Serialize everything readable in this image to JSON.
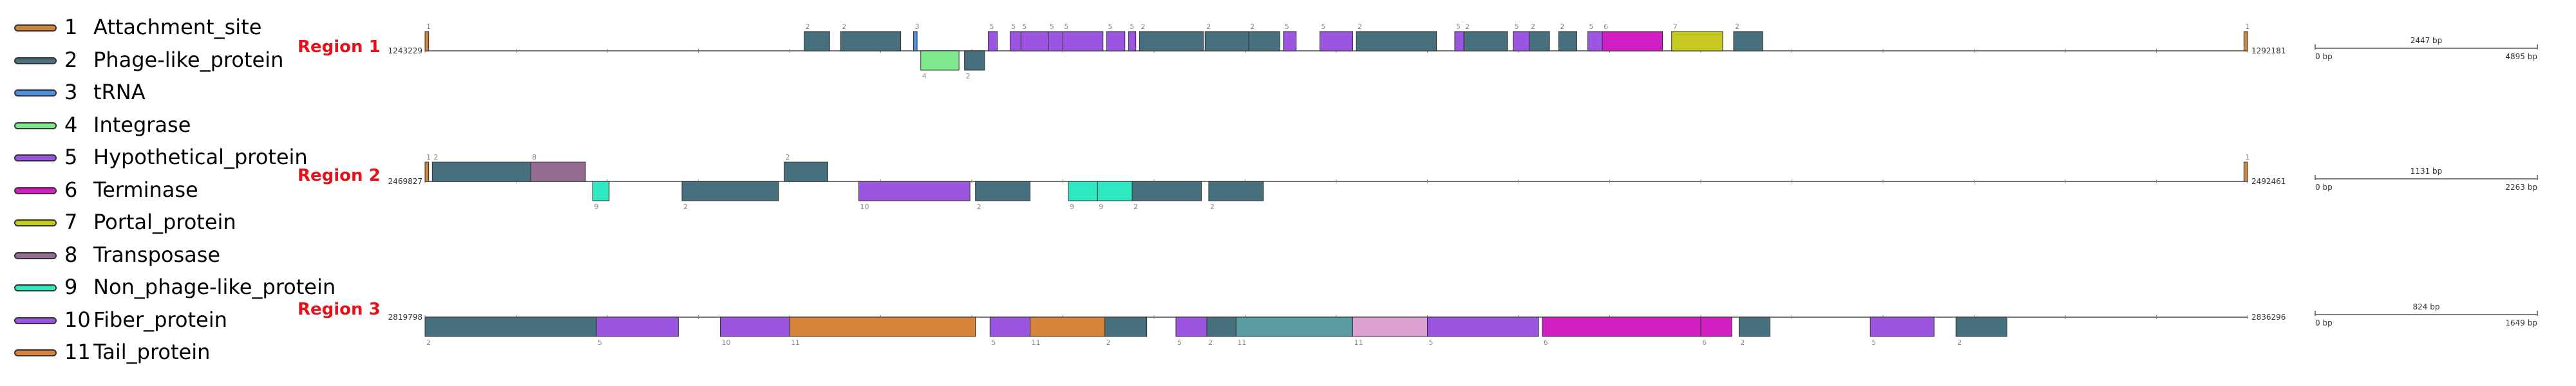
{
  "legend": [
    {
      "num": "1",
      "label": "Attachment_site",
      "color": "#cd853f"
    },
    {
      "num": "2",
      "label": "Phage-like_protein",
      "color": "#47707e"
    },
    {
      "num": "3",
      "label": "tRNA",
      "color": "#4f8fe0"
    },
    {
      "num": "4",
      "label": "Integrase",
      "color": "#7fe88d"
    },
    {
      "num": "5",
      "label": "Hypothetical_protein",
      "color": "#9b55e0"
    },
    {
      "num": "6",
      "label": "Terminase",
      "color": "#d21fc4"
    },
    {
      "num": "7",
      "label": "Portal_protein",
      "color": "#c6ca20"
    },
    {
      "num": "8",
      "label": "Transposase",
      "color": "#946c92"
    },
    {
      "num": "9",
      "label": "Non_phage-like_protein",
      "color": "#2fe8c0"
    },
    {
      "num": "10",
      "label": "Fiber_protein",
      "color": "#9b55e0"
    },
    {
      "num": "11",
      "label": "Tail_protein",
      "color": "#d6843a"
    }
  ],
  "regions": [
    {
      "name": "Region 1",
      "start_label": "1243229",
      "end_label": "1292181",
      "scale_mid": "2447 bp",
      "scale_left": "0 bp",
      "scale_right": "4895 bp",
      "genes": [
        {
          "type": "1",
          "strand": "+",
          "s": 0.0,
          "e": 0.002,
          "lbl": "1"
        },
        {
          "type": "2",
          "strand": "+",
          "s": 0.208,
          "e": 0.222,
          "lbl": "2"
        },
        {
          "type": "2",
          "strand": "+",
          "s": 0.228,
          "e": 0.261,
          "lbl": "2"
        },
        {
          "type": "3",
          "strand": "+",
          "s": 0.268,
          "e": 0.27,
          "lbl": "3"
        },
        {
          "type": "4",
          "strand": "-",
          "s": 0.272,
          "e": 0.293,
          "lbl": "4"
        },
        {
          "type": "2",
          "strand": "-",
          "s": 0.296,
          "e": 0.307,
          "lbl": "2"
        },
        {
          "type": "5",
          "strand": "+",
          "s": 0.309,
          "e": 0.314,
          "lbl": "5"
        },
        {
          "type": "5",
          "strand": "+",
          "s": 0.321,
          "e": 0.327,
          "lbl": "5"
        },
        {
          "type": "5",
          "strand": "+",
          "s": 0.327,
          "e": 0.342,
          "lbl": "5"
        },
        {
          "type": "5",
          "strand": "+",
          "s": 0.342,
          "e": 0.35,
          "lbl": "5"
        },
        {
          "type": "5",
          "strand": "+",
          "s": 0.35,
          "e": 0.372,
          "lbl": "5"
        },
        {
          "type": "5",
          "strand": "+",
          "s": 0.374,
          "e": 0.384,
          "lbl": "5"
        },
        {
          "type": "5",
          "strand": "+",
          "s": 0.386,
          "e": 0.39,
          "lbl": "5"
        },
        {
          "type": "2",
          "strand": "+",
          "s": 0.392,
          "e": 0.427,
          "lbl": "2"
        },
        {
          "type": "2",
          "strand": "+",
          "s": 0.428,
          "e": 0.452,
          "lbl": "2"
        },
        {
          "type": "2",
          "strand": "+",
          "s": 0.452,
          "e": 0.469,
          "lbl": "2"
        },
        {
          "type": "5",
          "strand": "+",
          "s": 0.471,
          "e": 0.478,
          "lbl": "5"
        },
        {
          "type": "5",
          "strand": "+",
          "s": 0.491,
          "e": 0.509,
          "lbl": "5"
        },
        {
          "type": "2",
          "strand": "+",
          "s": 0.511,
          "e": 0.555,
          "lbl": "2"
        },
        {
          "type": "5",
          "strand": "+",
          "s": 0.565,
          "e": 0.57,
          "lbl": "5"
        },
        {
          "type": "2",
          "strand": "+",
          "s": 0.57,
          "e": 0.594,
          "lbl": "2"
        },
        {
          "type": "5",
          "strand": "+",
          "s": 0.597,
          "e": 0.606,
          "lbl": "5"
        },
        {
          "type": "2",
          "strand": "+",
          "s": 0.606,
          "e": 0.617,
          "lbl": "2"
        },
        {
          "type": "2",
          "strand": "+",
          "s": 0.622,
          "e": 0.632,
          "lbl": "2"
        },
        {
          "type": "5",
          "strand": "+",
          "s": 0.638,
          "e": 0.646,
          "lbl": "5"
        },
        {
          "type": "6",
          "strand": "+",
          "s": 0.646,
          "e": 0.679,
          "lbl": "6"
        },
        {
          "type": "7",
          "strand": "+",
          "s": 0.684,
          "e": 0.712,
          "lbl": "7"
        },
        {
          "type": "2",
          "strand": "+",
          "s": 0.718,
          "e": 0.734,
          "lbl": "2"
        },
        {
          "type": "1",
          "strand": "+",
          "s": 0.998,
          "e": 1.0,
          "lbl": "1"
        }
      ]
    },
    {
      "name": "Region 2",
      "start_label": "2469827",
      "end_label": "2492461",
      "scale_mid": "1131 bp",
      "scale_left": "0 bp",
      "scale_right": "2263 bp",
      "genes": [
        {
          "type": "1",
          "strand": "+",
          "s": 0.0,
          "e": 0.002,
          "lbl": "1"
        },
        {
          "type": "2",
          "strand": "+",
          "s": 0.004,
          "e": 0.058,
          "lbl": "2"
        },
        {
          "type": "8",
          "strand": "+",
          "s": 0.058,
          "e": 0.088,
          "lbl": "8"
        },
        {
          "type": "9",
          "strand": "-",
          "s": 0.092,
          "e": 0.101,
          "lbl": "9"
        },
        {
          "type": "2",
          "strand": "-",
          "s": 0.141,
          "e": 0.194,
          "lbl": "2"
        },
        {
          "type": "2",
          "strand": "+",
          "s": 0.197,
          "e": 0.221,
          "lbl": "2"
        },
        {
          "type": "10",
          "strand": "-",
          "s": 0.238,
          "e": 0.299,
          "lbl": "10"
        },
        {
          "type": "2",
          "strand": "-",
          "s": 0.302,
          "e": 0.332,
          "lbl": "2"
        },
        {
          "type": "9",
          "strand": "-",
          "s": 0.353,
          "e": 0.369,
          "lbl": "9"
        },
        {
          "type": "9",
          "strand": "-",
          "s": 0.369,
          "e": 0.388,
          "lbl": "9"
        },
        {
          "type": "2",
          "strand": "-",
          "s": 0.388,
          "e": 0.426,
          "lbl": "2"
        },
        {
          "type": "2",
          "strand": "-",
          "s": 0.43,
          "e": 0.46,
          "lbl": "2"
        },
        {
          "type": "1",
          "strand": "+",
          "s": 0.998,
          "e": 1.0,
          "lbl": "1"
        }
      ]
    },
    {
      "name": "Region 3",
      "start_label": "2819798",
      "end_label": "2836296",
      "scale_mid": "824 bp",
      "scale_left": "0 bp",
      "scale_right": "1649 bp",
      "genes": [
        {
          "type": "2",
          "strand": "-",
          "s": 0.0,
          "e": 0.094,
          "lbl": "2"
        },
        {
          "type": "5",
          "strand": "-",
          "s": 0.094,
          "e": 0.139,
          "lbl": "5"
        },
        {
          "type": "10",
          "strand": "-",
          "s": 0.162,
          "e": 0.2,
          "lbl": "10"
        },
        {
          "type": "11",
          "strand": "-",
          "s": 0.2,
          "e": 0.302,
          "lbl": "11"
        },
        {
          "type": "5",
          "strand": "-",
          "s": 0.31,
          "e": 0.332,
          "lbl": "5"
        },
        {
          "type": "11",
          "strand": "-",
          "s": 0.332,
          "e": 0.373,
          "lbl": "11"
        },
        {
          "type": "2",
          "strand": "-",
          "s": 0.373,
          "e": 0.396,
          "lbl": "2"
        },
        {
          "type": "5",
          "strand": "-",
          "s": 0.412,
          "e": 0.429,
          "lbl": "5"
        },
        {
          "type": "2",
          "strand": "-",
          "s": 0.429,
          "e": 0.445,
          "lbl": "2"
        },
        {
          "type": "teal",
          "strand": "-",
          "s": 0.445,
          "e": 0.509,
          "lbl": "11"
        },
        {
          "type": "pink",
          "strand": "-",
          "s": 0.509,
          "e": 0.55,
          "lbl": "11"
        },
        {
          "type": "5",
          "strand": "-",
          "s": 0.55,
          "e": 0.611,
          "lbl": "5"
        },
        {
          "type": "6",
          "strand": "-",
          "s": 0.613,
          "e": 0.7,
          "lbl": "6"
        },
        {
          "type": "6",
          "strand": "-",
          "s": 0.7,
          "e": 0.717,
          "lbl": "6"
        },
        {
          "type": "2",
          "strand": "-",
          "s": 0.721,
          "e": 0.738,
          "lbl": "2"
        },
        {
          "type": "5",
          "strand": "-",
          "s": 0.793,
          "e": 0.828,
          "lbl": "5"
        },
        {
          "type": "2",
          "strand": "-",
          "s": 0.84,
          "e": 0.868,
          "lbl": "2"
        }
      ]
    }
  ],
  "extra_colors": {
    "teal": "#5a9aa0",
    "pink": "#dca3d2"
  }
}
